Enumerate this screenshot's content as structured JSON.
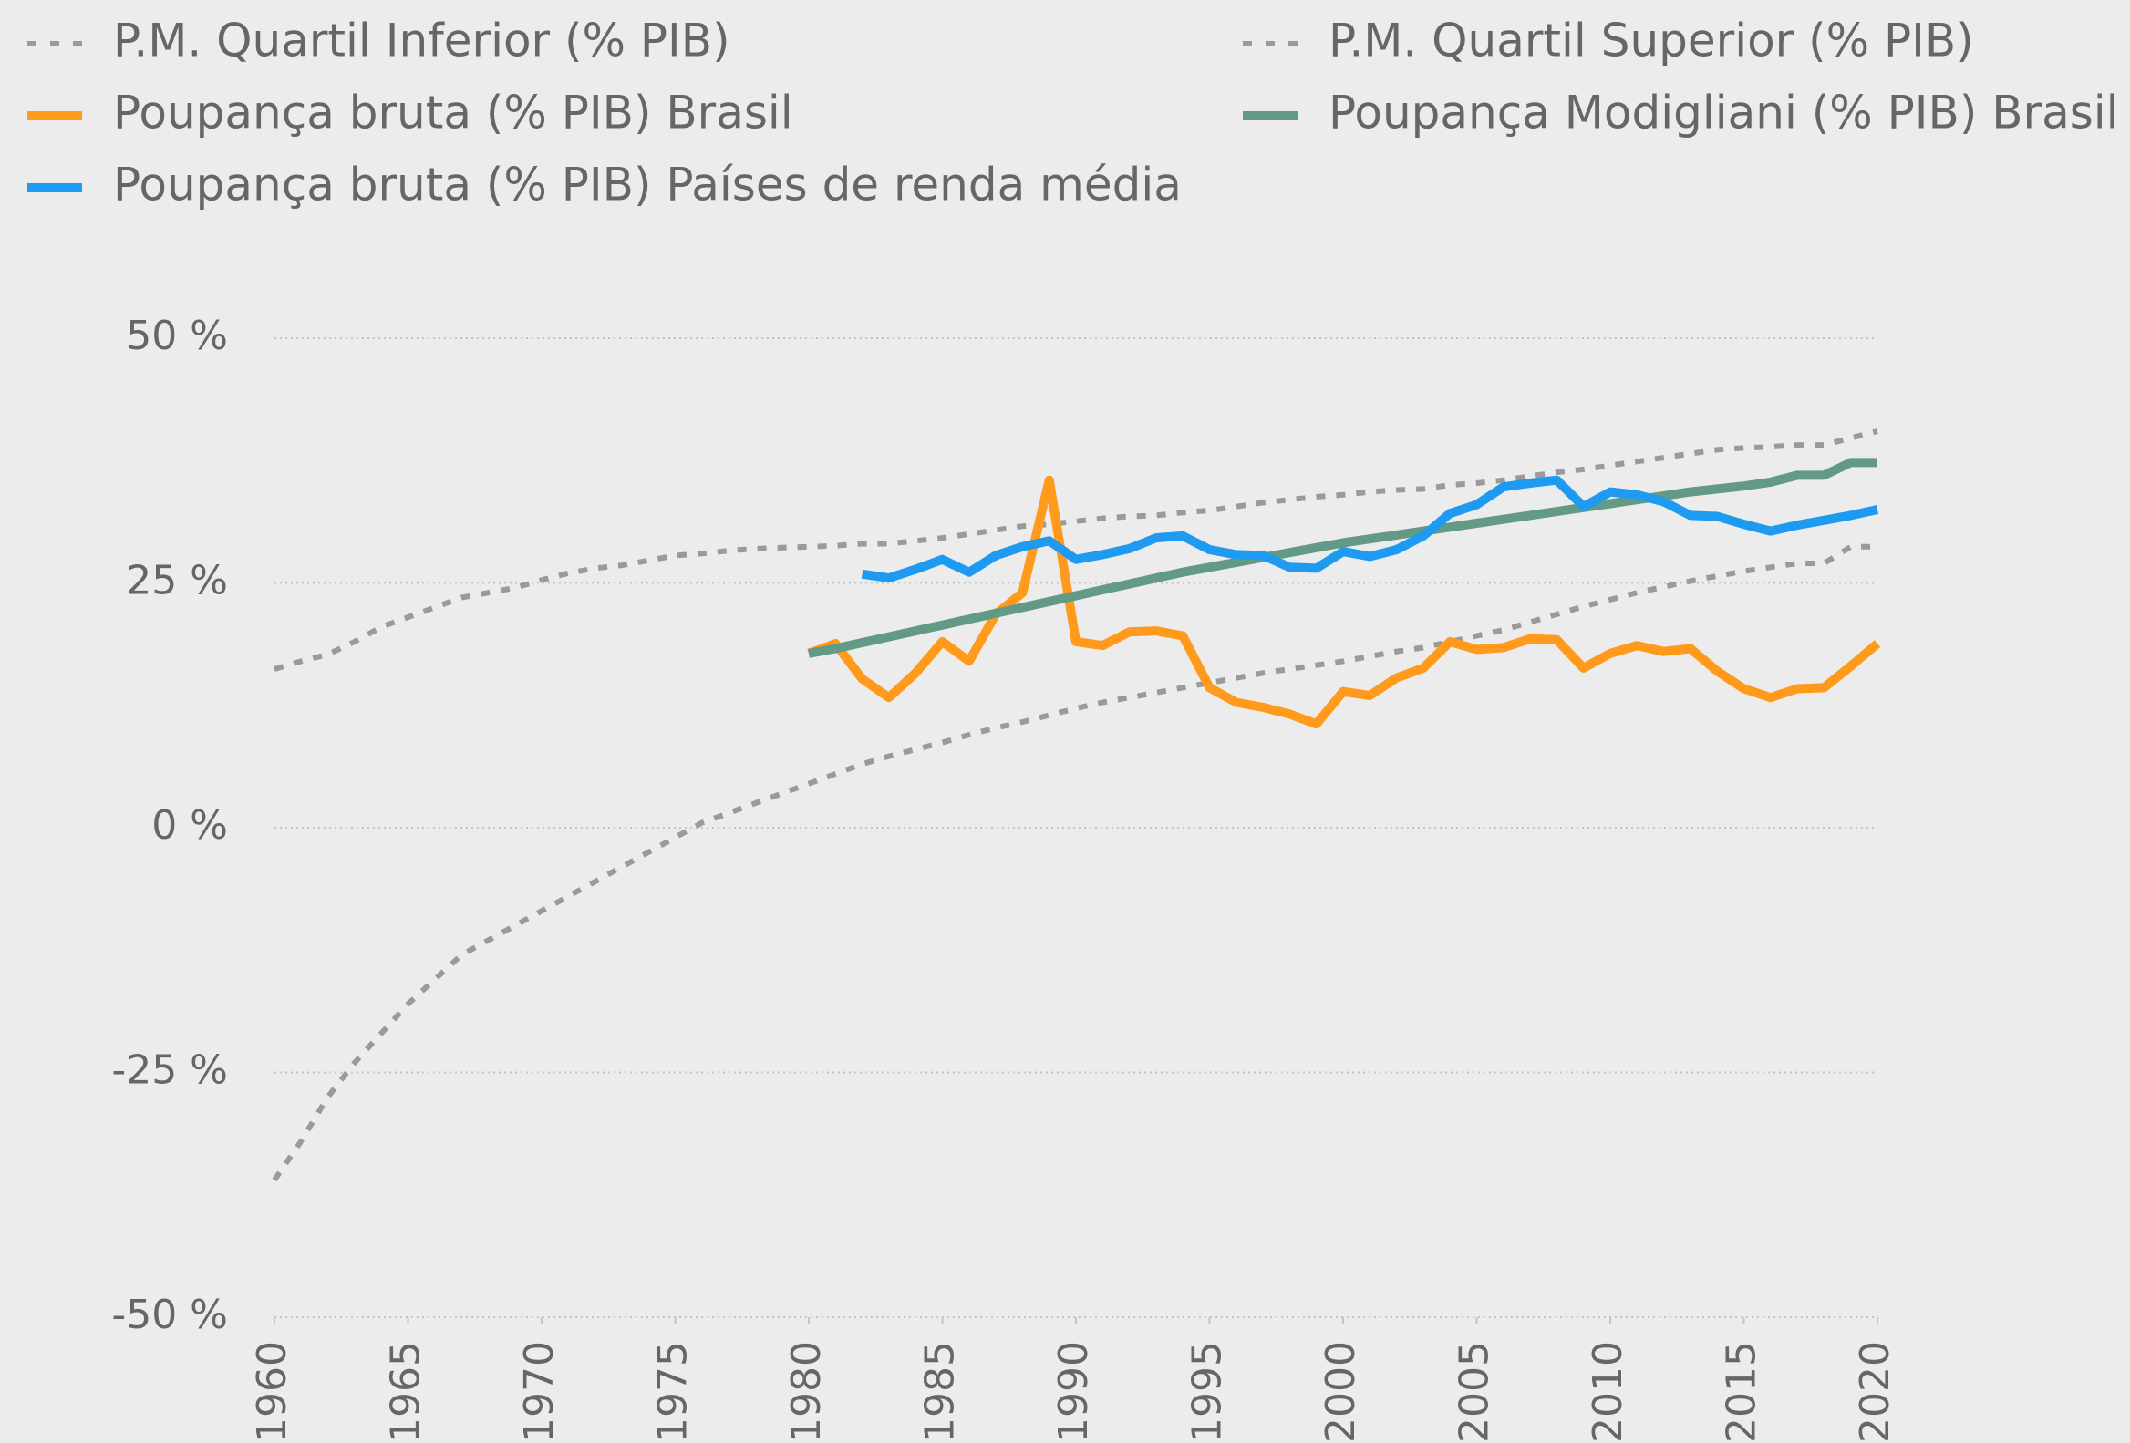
{
  "chart_data": {
    "type": "line",
    "x": [
      1960,
      1961,
      1962,
      1963,
      1964,
      1965,
      1966,
      1967,
      1968,
      1969,
      1970,
      1971,
      1972,
      1973,
      1974,
      1975,
      1976,
      1977,
      1978,
      1979,
      1980,
      1981,
      1982,
      1983,
      1984,
      1985,
      1986,
      1987,
      1988,
      1989,
      1990,
      1991,
      1992,
      1993,
      1994,
      1995,
      1996,
      1997,
      1998,
      1999,
      2000,
      2001,
      2002,
      2003,
      2004,
      2005,
      2006,
      2007,
      2008,
      2009,
      2010,
      2011,
      2012,
      2013,
      2014,
      2015,
      2016,
      2017,
      2018,
      2019,
      2020
    ],
    "series": [
      {
        "name": "P.M. Quartil Inferior (% PIB)",
        "color": "#9a9a9a",
        "dashed": true,
        "values": [
          -36,
          -32,
          -27.5,
          -24,
          -21,
          -18,
          -15.5,
          -13,
          -11.5,
          -10,
          -8.5,
          -7,
          -5.5,
          -4,
          -2.5,
          -1,
          0.5,
          1.5,
          2.5,
          3.5,
          4.5,
          5.5,
          6.5,
          7.3,
          8,
          8.7,
          9.5,
          10.2,
          10.8,
          11.5,
          12.2,
          12.8,
          13.3,
          13.8,
          14.3,
          14.8,
          15.3,
          15.8,
          16.2,
          16.6,
          17,
          17.5,
          18,
          18.4,
          19,
          19.6,
          20.2,
          21,
          21.8,
          22.6,
          23.3,
          24,
          24.6,
          25.2,
          25.7,
          26.2,
          26.6,
          27,
          27,
          28.7,
          28.7
        ]
      },
      {
        "name": "P.M. Quartil Superior (% PIB)",
        "color": "#9a9a9a",
        "dashed": true,
        "values": [
          16.2,
          17,
          17.7,
          19,
          20.5,
          21.5,
          22.5,
          23.5,
          24,
          24.5,
          25.3,
          26,
          26.5,
          26.8,
          27.3,
          27.8,
          28,
          28.3,
          28.5,
          28.6,
          28.7,
          28.8,
          29,
          29,
          29.3,
          29.6,
          30,
          30.4,
          30.8,
          31,
          31.3,
          31.6,
          31.8,
          31.9,
          32.2,
          32.4,
          32.8,
          33.2,
          33.5,
          33.8,
          34,
          34.3,
          34.5,
          34.6,
          35,
          35.2,
          35.5,
          35.9,
          36.3,
          36.6,
          37,
          37.4,
          37.8,
          38.2,
          38.6,
          38.8,
          38.9,
          39.1,
          39.1,
          39.8,
          40.5
        ]
      },
      {
        "name": "Poupança bruta (% PIB) Brasil",
        "color": "#ff9a1c",
        "dashed": false,
        "values": [
          null,
          null,
          null,
          null,
          null,
          null,
          null,
          null,
          null,
          null,
          null,
          null,
          null,
          null,
          null,
          null,
          null,
          null,
          null,
          null,
          17.8,
          18.8,
          15.2,
          13.3,
          15.8,
          19,
          17,
          21.8,
          24,
          35.5,
          19,
          18.6,
          20,
          20.1,
          19.6,
          14.3,
          12.8,
          12.3,
          11.6,
          10.6,
          13.9,
          13.5,
          15.3,
          16.3,
          19,
          18.2,
          18.4,
          19.3,
          19.2,
          16.3,
          17.8,
          18.6,
          18,
          18.3,
          16,
          14.2,
          13.3,
          14.2,
          14.3,
          16.5,
          18.8
        ]
      },
      {
        "name": "Poupança Modigliani (% PIB) Brasil",
        "color": "#629a86",
        "dashed": false,
        "values": [
          null,
          null,
          null,
          null,
          null,
          null,
          null,
          null,
          null,
          null,
          null,
          null,
          null,
          null,
          null,
          null,
          null,
          null,
          null,
          null,
          17.8,
          18.3,
          18.9,
          19.5,
          20.1,
          20.7,
          21.3,
          21.9,
          22.5,
          23.1,
          23.7,
          24.3,
          24.9,
          25.5,
          26.1,
          26.6,
          27.1,
          27.6,
          28.1,
          28.6,
          29.1,
          29.5,
          29.9,
          30.3,
          30.7,
          31.1,
          31.5,
          31.9,
          32.3,
          32.7,
          33.1,
          33.5,
          33.9,
          34.3,
          34.6,
          34.9,
          35.3,
          36,
          36,
          37.3,
          37.3
        ]
      },
      {
        "name": "Poupança bruta (% PIB) Países de renda média",
        "color": "#1e9bf0",
        "dashed": false,
        "values": [
          null,
          null,
          null,
          null,
          null,
          null,
          null,
          null,
          null,
          null,
          null,
          null,
          null,
          null,
          null,
          null,
          null,
          null,
          null,
          null,
          null,
          null,
          25.9,
          25.5,
          26.4,
          27.4,
          26.1,
          27.8,
          28.7,
          29.3,
          27.4,
          27.9,
          28.5,
          29.6,
          29.8,
          28.4,
          27.9,
          27.8,
          26.6,
          26.5,
          28.2,
          27.7,
          28.4,
          29.8,
          32.1,
          33,
          34.8,
          35.2,
          35.5,
          32.8,
          34.3,
          34,
          33.3,
          31.9,
          31.8,
          31,
          30.3,
          30.9,
          31.4,
          31.9,
          32.5
        ]
      }
    ],
    "xlim": [
      1960,
      2020
    ],
    "xticks": [
      1960,
      1965,
      1970,
      1975,
      1980,
      1985,
      1990,
      1995,
      2000,
      2005,
      2010,
      2015,
      2020
    ],
    "ylim": [
      -50,
      50
    ],
    "yticks": [
      {
        "value": -50,
        "label": "-50 %"
      },
      {
        "value": -25,
        "label": "-25 %"
      },
      {
        "value": 0,
        "label": "0 %"
      },
      {
        "value": 25,
        "label": "25 %"
      },
      {
        "value": 50,
        "label": "50 %"
      }
    ],
    "grid": true,
    "legend": "top"
  }
}
